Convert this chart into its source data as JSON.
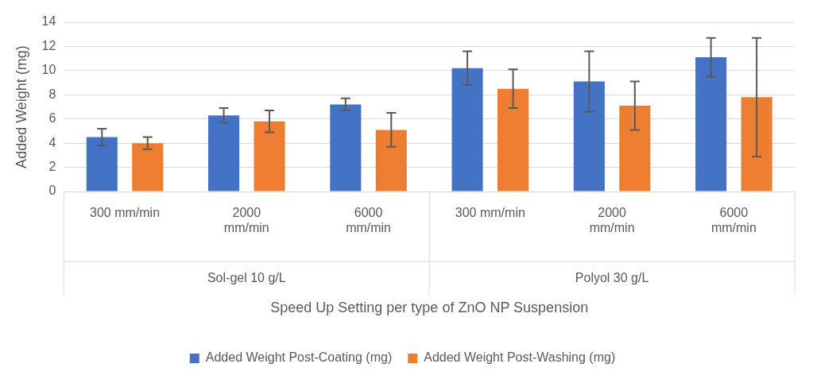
{
  "chart_data": {
    "type": "bar",
    "xlabel": "Speed Up Setting per type of ZnO NP Suspension",
    "ylabel": "Added Weight (mg)",
    "categories": [
      "300 mm/min",
      "2000 mm/min",
      "6000 mm/min",
      "300 mm/min",
      "2000 mm/min",
      "6000 mm/min"
    ],
    "annotations": [
      "Sol-gel 10 g/L",
      "Polyol 30 g/L"
    ],
    "series": [
      {
        "name": "Added Weight Post-Coating (mg)",
        "color": "#4472c4",
        "values": [
          4.5,
          6.3,
          7.2,
          10.2,
          9.1,
          11.1
        ],
        "errors": [
          0.7,
          0.6,
          0.5,
          1.4,
          2.5,
          1.6
        ]
      },
      {
        "name": "Added Weight Post-Washing (mg)",
        "color": "#ed7d31",
        "values": [
          4.0,
          5.8,
          5.1,
          8.5,
          7.1,
          7.8
        ],
        "errors": [
          0.5,
          0.9,
          1.4,
          1.6,
          2.0,
          4.9
        ]
      }
    ],
    "ylim": [
      0,
      14
    ],
    "yticks": [
      0,
      2,
      4,
      6,
      8,
      10,
      12,
      14
    ],
    "grid": "y",
    "legend": "bottom"
  }
}
